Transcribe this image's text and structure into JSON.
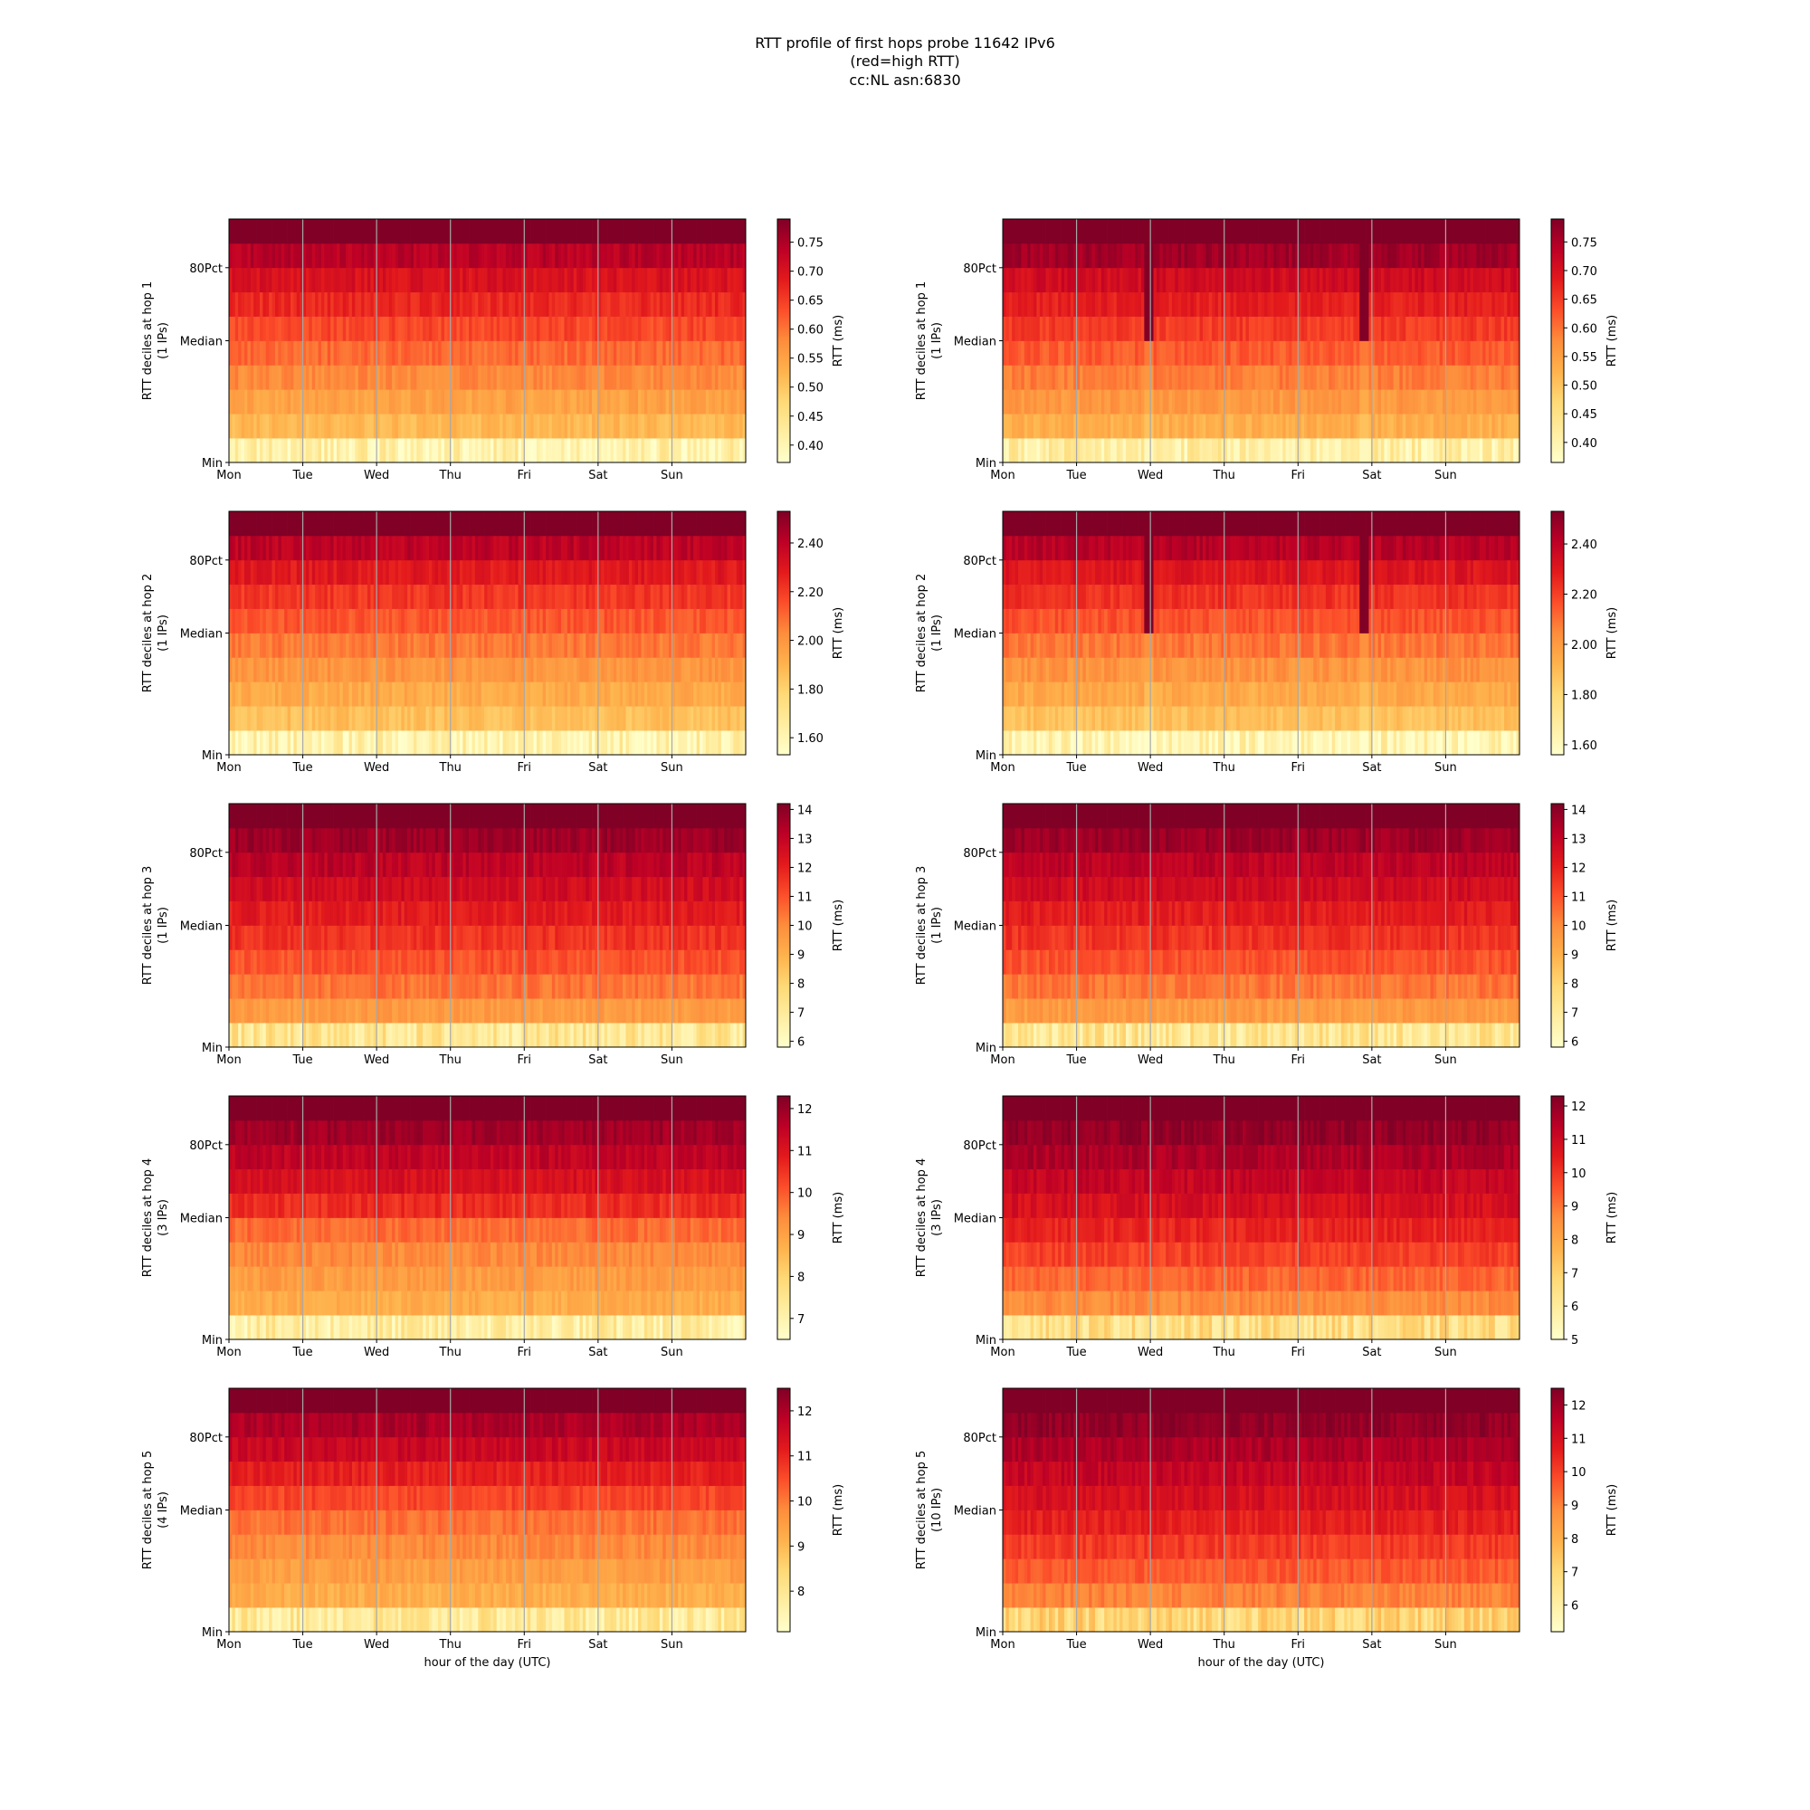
{
  "title_lines": [
    "RTT profile of first hops probe 11642 IPv6",
    "(red=high RTT)",
    "cc:NL asn:6830"
  ],
  "colormap": [
    "#ffffcc",
    "#ffeda0",
    "#fed976",
    "#feb24c",
    "#fd8d3c",
    "#fc4e2a",
    "#e31a1c",
    "#bd0026",
    "#800026"
  ],
  "chart_data": [
    {
      "type": "heatmap",
      "column": "left",
      "hop": 1,
      "ylabel": "RTT deciles at hop 1",
      "ylabel2": "(1 IPs)",
      "xlabel": "",
      "x_ticks": [
        "Mon",
        "Tue",
        "Wed",
        "Thu",
        "Fri",
        "Sat",
        "Sun"
      ],
      "y_ticks": [
        "Min",
        "Median",
        "80Pct"
      ],
      "colorbar_label": "RTT (ms)",
      "colorbar_ticks": [
        0.4,
        0.45,
        0.5,
        0.55,
        0.6,
        0.65,
        0.7,
        0.75
      ],
      "colorbar_range": [
        0.37,
        0.79
      ],
      "decile_levels": [
        0.41,
        0.52,
        0.55,
        0.58,
        0.61,
        0.64,
        0.67,
        0.7,
        0.74,
        0.79
      ],
      "spikes": []
    },
    {
      "type": "heatmap",
      "column": "right",
      "hop": 1,
      "ylabel": "RTT deciles at hop 1",
      "ylabel2": "(1 IPs)",
      "xlabel": "",
      "x_ticks": [
        "Mon",
        "Tue",
        "Wed",
        "Thu",
        "Fri",
        "Sat",
        "Sun"
      ],
      "y_ticks": [
        "Min",
        "Median",
        "80Pct"
      ],
      "colorbar_label": "RTT (ms)",
      "colorbar_ticks": [
        0.4,
        0.45,
        0.5,
        0.55,
        0.6,
        0.65,
        0.7,
        0.75
      ],
      "colorbar_range": [
        0.365,
        0.79
      ],
      "decile_levels": [
        0.41,
        0.53,
        0.56,
        0.59,
        0.62,
        0.65,
        0.68,
        0.71,
        0.76,
        0.79
      ],
      "spikes": [
        1.95,
        4.87
      ]
    },
    {
      "type": "heatmap",
      "column": "left",
      "hop": 2,
      "ylabel": "RTT deciles at hop 2",
      "ylabel2": "(1 IPs)",
      "xlabel": "",
      "x_ticks": [
        "Mon",
        "Tue",
        "Wed",
        "Thu",
        "Fri",
        "Sat",
        "Sun"
      ],
      "y_ticks": [
        "Min",
        "Median",
        "80Pct"
      ],
      "colorbar_label": "RTT (ms)",
      "colorbar_ticks": [
        1.6,
        1.8,
        2.0,
        2.2,
        2.4
      ],
      "colorbar_range": [
        1.53,
        2.53
      ],
      "decile_levels": [
        1.62,
        1.86,
        1.93,
        2.0,
        2.07,
        2.14,
        2.21,
        2.29,
        2.4,
        2.53
      ],
      "spikes": []
    },
    {
      "type": "heatmap",
      "column": "right",
      "hop": 2,
      "ylabel": "RTT deciles at hop 2",
      "ylabel2": "(1 IPs)",
      "xlabel": "",
      "x_ticks": [
        "Mon",
        "Tue",
        "Wed",
        "Thu",
        "Fri",
        "Sat",
        "Sun"
      ],
      "y_ticks": [
        "Min",
        "Median",
        "80Pct"
      ],
      "colorbar_label": "RTT (ms)",
      "colorbar_ticks": [
        1.6,
        1.8,
        2.0,
        2.2,
        2.4
      ],
      "colorbar_range": [
        1.56,
        2.53
      ],
      "decile_levels": [
        1.63,
        1.88,
        1.95,
        2.02,
        2.09,
        2.16,
        2.23,
        2.31,
        2.42,
        2.53
      ],
      "spikes": [
        1.95,
        4.87
      ]
    },
    {
      "type": "heatmap",
      "column": "left",
      "hop": 3,
      "ylabel": "RTT deciles at hop 3",
      "ylabel2": "(1 IPs)",
      "xlabel": "",
      "x_ticks": [
        "Mon",
        "Tue",
        "Wed",
        "Thu",
        "Fri",
        "Sat",
        "Sun"
      ],
      "y_ticks": [
        "Min",
        "Median",
        "80Pct"
      ],
      "colorbar_label": "RTT (ms)",
      "colorbar_ticks": [
        6,
        7,
        8,
        9,
        10,
        11,
        12,
        13,
        14
      ],
      "colorbar_range": [
        5.8,
        14.2
      ],
      "decile_levels": [
        7.2,
        9.6,
        10.4,
        11.0,
        11.6,
        12.1,
        12.6,
        13.1,
        13.7,
        14.2
      ],
      "spikes": []
    },
    {
      "type": "heatmap",
      "column": "right",
      "hop": 3,
      "ylabel": "RTT deciles at hop 3",
      "ylabel2": "(1 IPs)",
      "xlabel": "",
      "x_ticks": [
        "Mon",
        "Tue",
        "Wed",
        "Thu",
        "Fri",
        "Sat",
        "Sun"
      ],
      "y_ticks": [
        "Min",
        "Median",
        "80Pct"
      ],
      "colorbar_label": "RTT (ms)",
      "colorbar_ticks": [
        6,
        7,
        8,
        9,
        10,
        11,
        12,
        13,
        14
      ],
      "colorbar_range": [
        5.8,
        14.2
      ],
      "decile_levels": [
        7.2,
        9.6,
        10.4,
        11.0,
        11.6,
        12.1,
        12.6,
        13.1,
        13.7,
        14.2
      ],
      "spikes": []
    },
    {
      "type": "heatmap",
      "column": "left",
      "hop": 4,
      "ylabel": "RTT deciles at hop 4",
      "ylabel2": "(3 IPs)",
      "xlabel": "",
      "x_ticks": [
        "Mon",
        "Tue",
        "Wed",
        "Thu",
        "Fri",
        "Sat",
        "Sun"
      ],
      "y_ticks": [
        "Min",
        "Median",
        "80Pct"
      ],
      "colorbar_label": "RTT (ms)",
      "colorbar_ticks": [
        7,
        8,
        9,
        10,
        11,
        12
      ],
      "colorbar_range": [
        6.5,
        12.3
      ],
      "decile_levels": [
        7.2,
        8.8,
        9.1,
        9.4,
        9.8,
        10.6,
        11.1,
        11.5,
        11.9,
        12.3
      ],
      "spikes": []
    },
    {
      "type": "heatmap",
      "column": "right",
      "hop": 4,
      "ylabel": "RTT deciles at hop 4",
      "ylabel2": "(3 IPs)",
      "xlabel": "",
      "x_ticks": [
        "Mon",
        "Tue",
        "Wed",
        "Thu",
        "Fri",
        "Sat",
        "Sun"
      ],
      "y_ticks": [
        "Min",
        "Median",
        "80Pct"
      ],
      "colorbar_label": "RTT (ms)",
      "colorbar_ticks": [
        5,
        6,
        7,
        8,
        9,
        10,
        11,
        12
      ],
      "colorbar_range": [
        5.0,
        12.3
      ],
      "decile_levels": [
        6.5,
        8.6,
        9.2,
        9.8,
        10.3,
        10.8,
        11.2,
        11.6,
        12.0,
        12.3
      ],
      "spikes": []
    },
    {
      "type": "heatmap",
      "column": "left",
      "hop": 5,
      "ylabel": "RTT deciles at hop 5",
      "ylabel2": "(4 IPs)",
      "xlabel": "hour of the day (UTC)",
      "x_ticks": [
        "Mon",
        "Tue",
        "Wed",
        "Thu",
        "Fri",
        "Sat",
        "Sun"
      ],
      "y_ticks": [
        "Min",
        "Median",
        "80Pct"
      ],
      "colorbar_label": "RTT (ms)",
      "colorbar_ticks": [
        8,
        9,
        10,
        11,
        12
      ],
      "colorbar_range": [
        7.1,
        12.5
      ],
      "decile_levels": [
        7.9,
        9.2,
        9.5,
        9.8,
        10.1,
        10.6,
        11.1,
        11.6,
        12.0,
        12.5
      ],
      "spikes": []
    },
    {
      "type": "heatmap",
      "column": "right",
      "hop": 5,
      "ylabel": "RTT deciles at hop 5",
      "ylabel2": "(10 IPs)",
      "xlabel": "hour of the day (UTC)",
      "x_ticks": [
        "Mon",
        "Tue",
        "Wed",
        "Thu",
        "Fri",
        "Sat",
        "Sun"
      ],
      "y_ticks": [
        "Min",
        "Median",
        "80Pct"
      ],
      "colorbar_label": "RTT (ms)",
      "colorbar_ticks": [
        6,
        7,
        8,
        9,
        10,
        11,
        12
      ],
      "colorbar_range": [
        5.2,
        12.5
      ],
      "decile_levels": [
        7.0,
        9.0,
        9.6,
        10.1,
        10.6,
        11.0,
        11.4,
        11.8,
        12.2,
        12.5
      ],
      "spikes": []
    }
  ]
}
